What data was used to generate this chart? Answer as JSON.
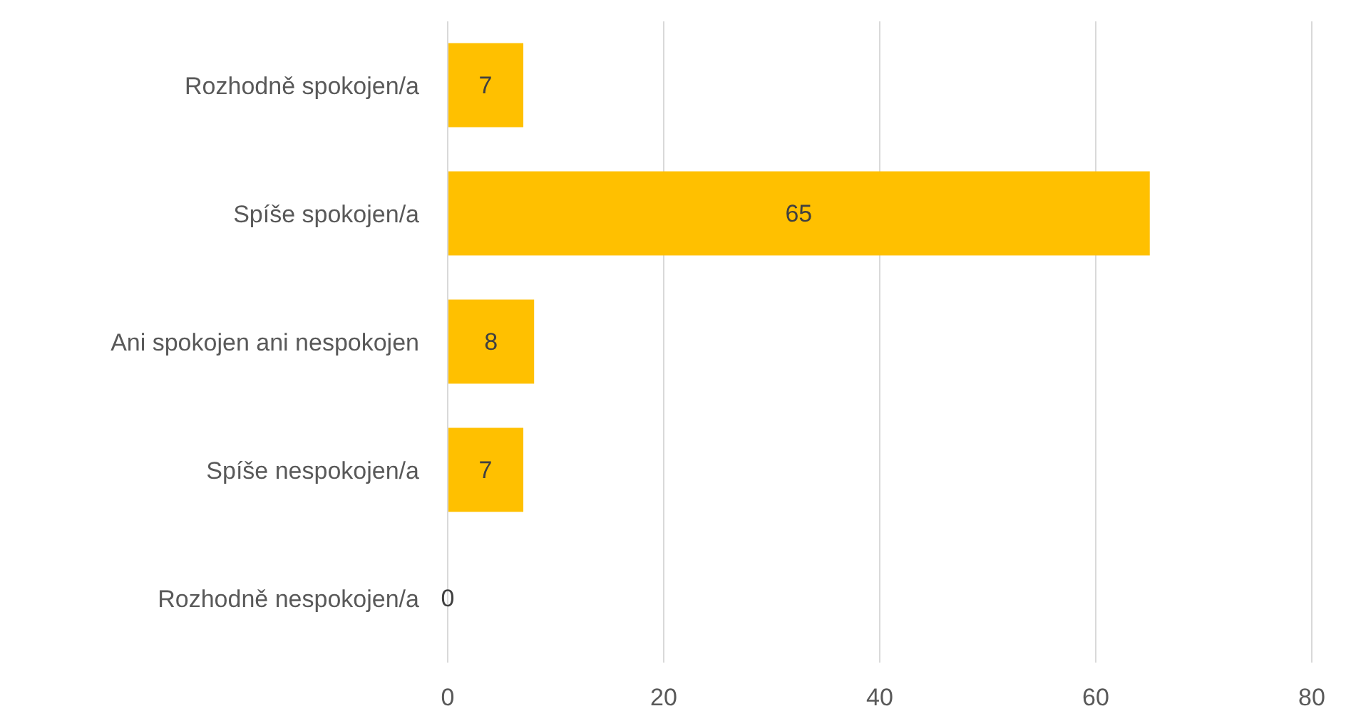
{
  "chart_data": {
    "type": "bar",
    "orientation": "horizontal",
    "categories": [
      "Rozhodně spokojen/a",
      "Spíše spokojen/a",
      "Ani spokojen ani nespokojen",
      "Spíše nespokojen/a",
      "Rozhodně nespokojen/a"
    ],
    "values": [
      7,
      65,
      8,
      7,
      0
    ],
    "color": "#ffc000",
    "xlim": [
      0,
      80
    ],
    "xticks": [
      0,
      20,
      40,
      60,
      80
    ],
    "grid": "x",
    "data_labels": true,
    "legend": false
  }
}
